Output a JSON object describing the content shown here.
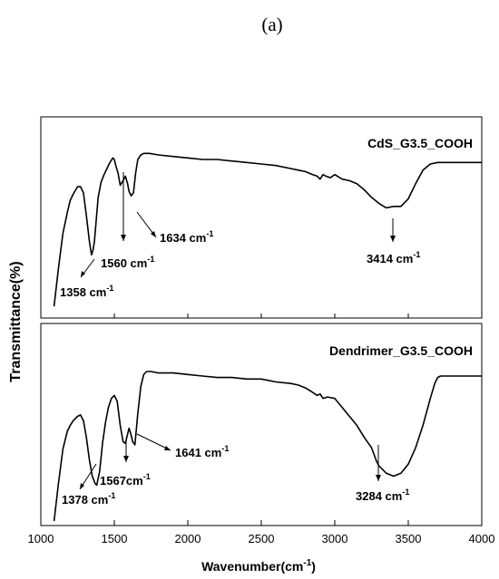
{
  "figure": {
    "panel_label": "(a)"
  },
  "chart_data": {
    "type": "line",
    "xlabel": "Wavenumber(cm",
    "xlabel_sup": "-1",
    "xlabel_close": ")",
    "ylabel": "Transmittance(%)",
    "xlim": [
      1000,
      4000
    ],
    "x_ticks": [
      "1000",
      "1500",
      "2000",
      "2500",
      "3000",
      "3500",
      "4000"
    ],
    "y_ticks_shown": false,
    "grid": false,
    "panels": [
      {
        "name": "CdS_G3.5_COOH",
        "ylim": [
          0,
          1
        ],
        "x": [
          1090,
          1120,
          1150,
          1180,
          1200,
          1220,
          1250,
          1270,
          1290,
          1310,
          1330,
          1345,
          1355,
          1365,
          1375,
          1390,
          1410,
          1430,
          1450,
          1470,
          1490,
          1500,
          1510,
          1525,
          1540,
          1560,
          1575,
          1590,
          1600,
          1615,
          1630,
          1645,
          1660,
          1680,
          1700,
          1720,
          1740,
          1800,
          1900,
          2000,
          2100,
          2200,
          2300,
          2400,
          2500,
          2600,
          2700,
          2750,
          2800,
          2850,
          2880,
          2900,
          2920,
          2940,
          2970,
          3000,
          3050,
          3100,
          3150,
          3200,
          3250,
          3300,
          3350,
          3400,
          3450,
          3500,
          3550,
          3600,
          3650,
          3700,
          3800,
          3900,
          4000
        ],
        "y": [
          0.0,
          0.25,
          0.48,
          0.62,
          0.7,
          0.74,
          0.79,
          0.79,
          0.75,
          0.6,
          0.43,
          0.34,
          0.37,
          0.43,
          0.55,
          0.72,
          0.82,
          0.87,
          0.91,
          0.95,
          0.98,
          0.97,
          0.93,
          0.88,
          0.8,
          0.83,
          0.86,
          0.81,
          0.76,
          0.73,
          0.75,
          0.88,
          0.97,
          1.0,
          1.01,
          1.01,
          1.01,
          1.0,
          0.99,
          0.98,
          0.97,
          0.97,
          0.96,
          0.95,
          0.94,
          0.93,
          0.91,
          0.9,
          0.89,
          0.87,
          0.86,
          0.84,
          0.87,
          0.86,
          0.85,
          0.87,
          0.84,
          0.83,
          0.81,
          0.77,
          0.72,
          0.68,
          0.65,
          0.66,
          0.66,
          0.71,
          0.81,
          0.9,
          0.94,
          0.95,
          0.95,
          0.95,
          0.95
        ],
        "annotations": [
          {
            "label": "1358 cm",
            "sup": "-1",
            "x": 1358
          },
          {
            "label": "1560 cm",
            "sup": "-1",
            "x": 1560
          },
          {
            "label": "1634 cm",
            "sup": "-1",
            "x": 1634
          },
          {
            "label": "3414 cm",
            "sup": "-1",
            "x": 3414
          }
        ]
      },
      {
        "name": "Dendrimer_G3.5_COOH",
        "ylim": [
          0,
          1
        ],
        "x": [
          1090,
          1120,
          1150,
          1180,
          1200,
          1220,
          1250,
          1270,
          1290,
          1310,
          1330,
          1350,
          1370,
          1380,
          1400,
          1420,
          1440,
          1460,
          1480,
          1500,
          1520,
          1540,
          1560,
          1575,
          1590,
          1600,
          1610,
          1625,
          1640,
          1660,
          1680,
          1700,
          1720,
          1750,
          1800,
          1900,
          2000,
          2100,
          2200,
          2300,
          2400,
          2500,
          2600,
          2700,
          2750,
          2800,
          2850,
          2880,
          2900,
          2920,
          2950,
          3000,
          3050,
          3100,
          3150,
          3200,
          3250,
          3284,
          3300,
          3350,
          3400,
          3450,
          3500,
          3550,
          3600,
          3650,
          3680,
          3700,
          3720,
          3800,
          3900,
          4000
        ],
        "y": [
          0.0,
          0.25,
          0.48,
          0.6,
          0.64,
          0.67,
          0.7,
          0.71,
          0.67,
          0.56,
          0.41,
          0.3,
          0.25,
          0.24,
          0.33,
          0.52,
          0.66,
          0.76,
          0.82,
          0.84,
          0.8,
          0.64,
          0.53,
          0.52,
          0.58,
          0.62,
          0.59,
          0.53,
          0.51,
          0.72,
          0.9,
          0.98,
          1.0,
          1.0,
          0.99,
          0.99,
          0.98,
          0.97,
          0.96,
          0.96,
          0.95,
          0.95,
          0.93,
          0.92,
          0.91,
          0.89,
          0.86,
          0.84,
          0.85,
          0.82,
          0.83,
          0.82,
          0.76,
          0.7,
          0.64,
          0.56,
          0.49,
          0.4,
          0.37,
          0.32,
          0.3,
          0.32,
          0.38,
          0.49,
          0.64,
          0.82,
          0.92,
          0.96,
          0.97,
          0.97,
          0.97,
          0.97
        ],
        "annotations": [
          {
            "label": "1378 cm",
            "sup": "-1",
            "x": 1378
          },
          {
            "label": "1567cm",
            "sup": "-1",
            "x": 1567
          },
          {
            "label": "1641 cm",
            "sup": "-1",
            "x": 1641
          },
          {
            "label": "3284 cm",
            "sup": "-1",
            "x": 3284
          }
        ]
      }
    ]
  }
}
